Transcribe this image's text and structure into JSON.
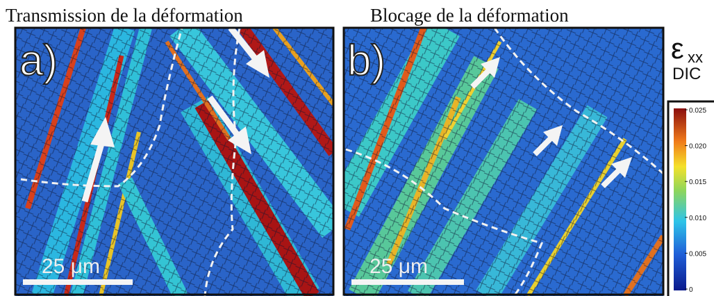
{
  "panels": [
    {
      "title": "Transmission de la déformation",
      "label": "a)",
      "scale": "25 μm"
    },
    {
      "title": "Blocage de la déformation",
      "label": "b)",
      "scale": "25 μm"
    }
  ],
  "colorbar": {
    "symbol": "ε",
    "subscript": "xx",
    "caption": "DIC",
    "lim": [
      0,
      0.025
    ],
    "ticks": [
      0,
      0.005,
      {
        "value": 0.01,
        "label": "0.010"
      },
      0.015,
      {
        "value": 0.02,
        "label": "0.020"
      },
      0.025
    ]
  }
}
